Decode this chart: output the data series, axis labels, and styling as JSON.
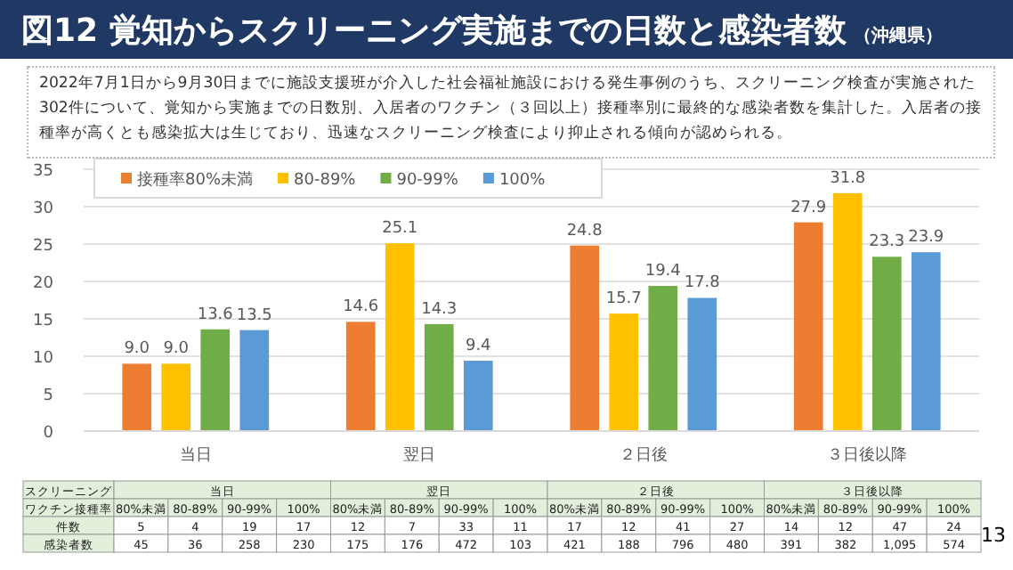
{
  "chart_data": {
    "type": "bar",
    "title": "図12 覚知からスクリーニング実施までの日数と感染者数",
    "subtitle": "（沖縄県）",
    "categories": [
      "当日",
      "翌日",
      "２日後",
      "３日後以降"
    ],
    "series": [
      {
        "name": "接種率80%未満",
        "color": "#ed7d31",
        "values": [
          9.0,
          14.6,
          24.8,
          27.9
        ],
        "value_labels": [
          "9.0",
          "14.6",
          "24.8",
          "27.9"
        ]
      },
      {
        "name": "80-89%",
        "color": "#ffc000",
        "values": [
          9.0,
          25.1,
          15.7,
          31.8
        ],
        "value_labels": [
          "9.0",
          "25.1",
          "15.7",
          "31.8"
        ]
      },
      {
        "name": "90-99%",
        "color": "#70ad47",
        "values": [
          13.6,
          14.3,
          19.4,
          23.3
        ],
        "value_labels": [
          "13.6",
          "14.3",
          "19.4",
          "23.3"
        ]
      },
      {
        "name": "100%",
        "color": "#5b9bd5",
        "values": [
          13.5,
          9.4,
          17.8,
          23.9
        ],
        "value_labels": [
          "13.5",
          "9.4",
          "17.8",
          "23.9"
        ]
      }
    ],
    "ylim": [
      0,
      35
    ],
    "yticks": [
      0,
      5,
      10,
      15,
      20,
      25,
      30,
      35
    ],
    "grid": "y",
    "legend": "top left",
    "annotations": [
      "2022年7月1日から9月30日までに施設支援班が介入した社会福祉施設における発生事例のうち、スクリーニング検査が実施された302件について、覚知から実施までの日数別、入居者のワクチン（３回以上）接種率別に最終的な感染者数を集計した。入居者の接種率が高くとも感染拡大は生じており、迅速なスクリーニング検査により抑止される傾向が認められる。",
      "13",
      "スクリーニング",
      "ワクチン接種率",
      "80%未満",
      "80-89%",
      "90-99%",
      "100%",
      "件数",
      "5",
      "4",
      "19",
      "17",
      "12",
      "7",
      "33",
      "11",
      "17",
      "12",
      "41",
      "27",
      "14",
      "12",
      "47",
      "24",
      "感染者数",
      "45",
      "36",
      "258",
      "230",
      "175",
      "176",
      "472",
      "103",
      "421",
      "188",
      "796",
      "480",
      "391",
      "382",
      "1,095",
      "574"
    ]
  }
}
